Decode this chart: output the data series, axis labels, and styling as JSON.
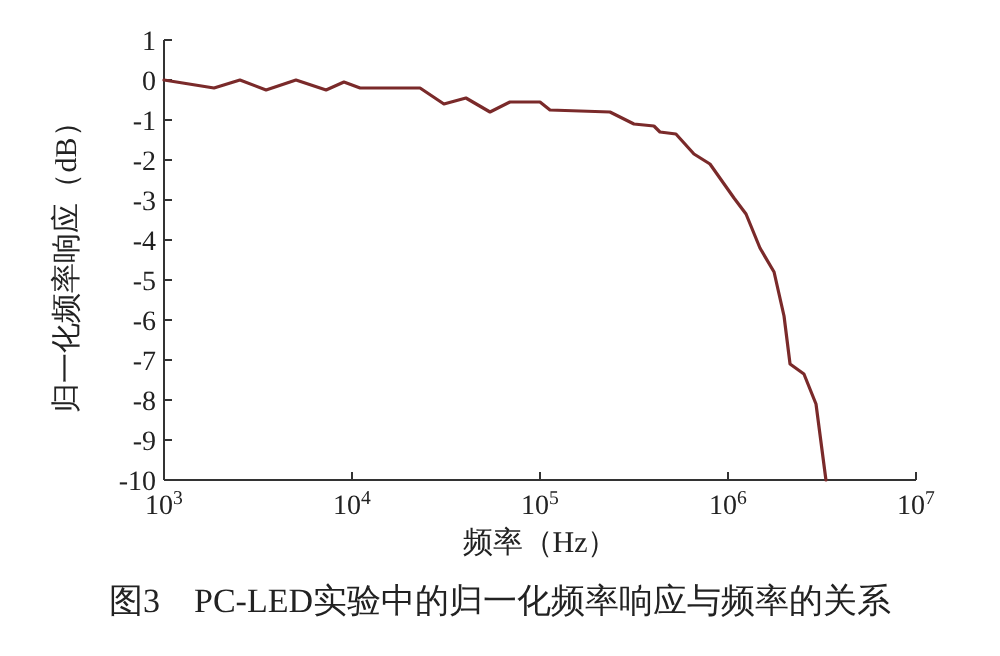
{
  "chart_data": {
    "type": "line",
    "title": "图3　PC-LED实验中的归一化频率响应与频率的关系",
    "xlabel": "频率（Hz）",
    "ylabel": "归一化频率响应（dB）",
    "log": "x",
    "xlim": [
      1000,
      10000000
    ],
    "xticks": [
      {
        "value": 1000,
        "label": "10$^{3}$"
      },
      {
        "value": 10000,
        "label": "10$^{4}$"
      },
      {
        "value": 100000,
        "label": "10$^{5}$"
      },
      {
        "value": 1000000,
        "label": "10$^{6}$"
      },
      {
        "value": 10000000,
        "label": "10$^{7}$"
      }
    ],
    "ylim": [
      -10,
      1
    ],
    "yticks": [
      1,
      0,
      -1,
      -2,
      -3,
      -4,
      -5,
      -6,
      -7,
      -8,
      -9,
      -10
    ],
    "grid": false,
    "marker": "none",
    "line_style": "solid",
    "x": [
      1000,
      1845,
      2535,
      3490,
      5035,
      7280,
      9060,
      11040,
      23010,
      30830,
      40360,
      54200,
      69180,
      100000,
      113000,
      235500,
      316000,
      403600,
      434500,
      528400,
      659200,
      801700,
      1076000,
      1247000,
      1479000,
      1758000,
      1986000,
      2138000,
      2535000,
      2938000,
      3319000
    ],
    "series": [
      {
        "color": "#7a2a2a",
        "values": [
          0,
          -0.2,
          0,
          -0.25,
          0,
          -0.25,
          -0.05,
          -0.2,
          -0.2,
          -0.6,
          -0.45,
          -0.8,
          -0.55,
          -0.55,
          -0.75,
          -0.8,
          -1.1,
          -1.15,
          -1.3,
          -1.35,
          -1.85,
          -2.1,
          -2.95,
          -3.35,
          -4.2,
          -4.8,
          -5.9,
          -7.1,
          -7.35,
          -8.1,
          -10
        ]
      }
    ]
  }
}
